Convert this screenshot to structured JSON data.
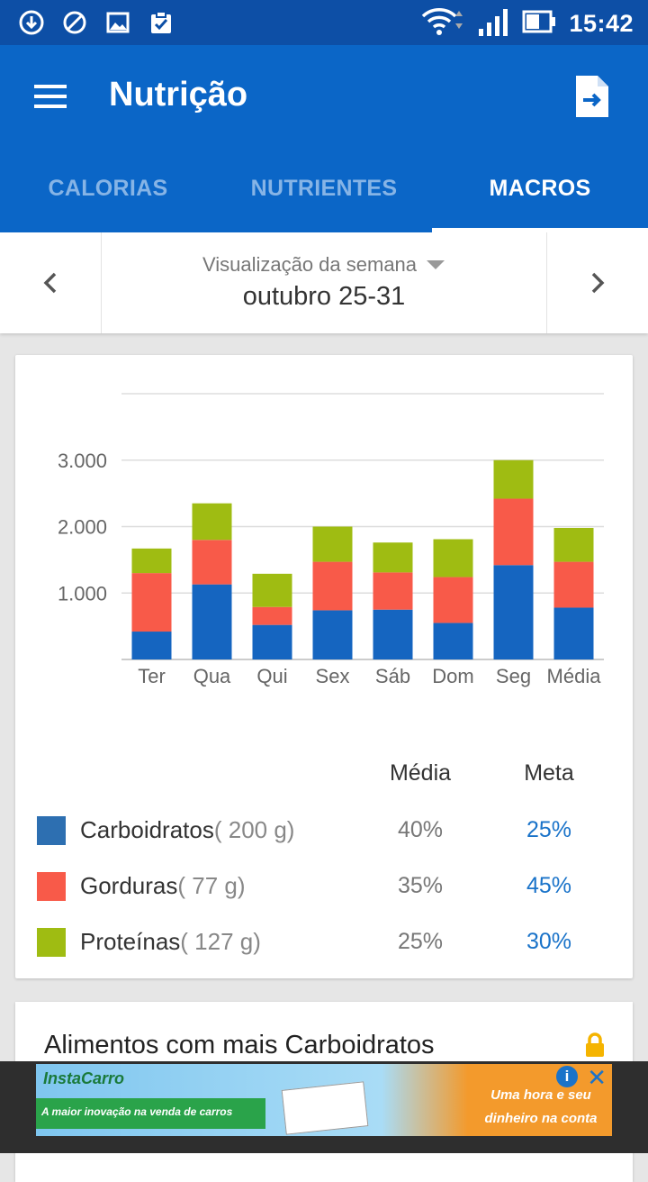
{
  "status_bar": {
    "time": "15:42",
    "icons": [
      "download-icon",
      "blocked-icon",
      "image-icon",
      "clipboard-check-icon"
    ],
    "right_icons": [
      "wifi-icon",
      "signal-icon",
      "battery-icon"
    ]
  },
  "app_bar": {
    "title": "Nutrição",
    "menu_icon": "menu-icon",
    "action_icon": "export-file-icon"
  },
  "tabs": [
    {
      "label": "CALORIAS",
      "active": false
    },
    {
      "label": "NUTRIENTES",
      "active": false
    },
    {
      "label": "MACROS",
      "active": true
    }
  ],
  "week_selector": {
    "view_label": "Visualização da semana",
    "range": "outubro 25-31"
  },
  "colors": {
    "primary": "#0b66c7",
    "status_bar": "#0d4fa6",
    "carbs": "#1565c0",
    "fat": "#f85a49",
    "protein": "#9fbc12",
    "legend_carbs": "#2d6fb1",
    "goal_text": "#1a73c9"
  },
  "chart_data": {
    "type": "bar",
    "stacked": true,
    "categories": [
      "Ter",
      "Qua",
      "Qui",
      "Sex",
      "Sáb",
      "Dom",
      "Seg",
      "Média"
    ],
    "series": [
      {
        "name": "Carboidratos",
        "values": [
          420,
          1130,
          520,
          740,
          750,
          550,
          1420,
          780
        ]
      },
      {
        "name": "Gorduras",
        "values": [
          880,
          670,
          270,
          730,
          560,
          690,
          1000,
          690
        ]
      },
      {
        "name": "Proteínas",
        "values": [
          370,
          550,
          500,
          530,
          450,
          570,
          580,
          510
        ]
      }
    ],
    "y_ticks": [
      "1.000",
      "2.000",
      "3.000"
    ],
    "y_tick_values": [
      1000,
      2000,
      3000
    ],
    "ylim": [
      0,
      4000
    ],
    "grid": true,
    "title": "",
    "xlabel": "",
    "ylabel": ""
  },
  "legend": {
    "avg_header": "Média",
    "goal_header": "Meta",
    "rows": [
      {
        "name": "Carboidratos",
        "grams": "( 200 g)",
        "avg": "40%",
        "goal": "25%"
      },
      {
        "name": "Gorduras",
        "grams": "( 77 g)",
        "avg": "35%",
        "goal": "45%"
      },
      {
        "name": "Proteínas",
        "grams": "( 127 g)",
        "avg": "25%",
        "goal": "30%"
      }
    ]
  },
  "top_foods": {
    "title": "Alimentos com mais Carboidratos",
    "lock_icon": "lock-icon"
  },
  "ad": {
    "brand": "InstaCarro",
    "slogan": "A maior inovação na venda de carros",
    "cta": "Uma hora e seu dinheiro na conta"
  }
}
